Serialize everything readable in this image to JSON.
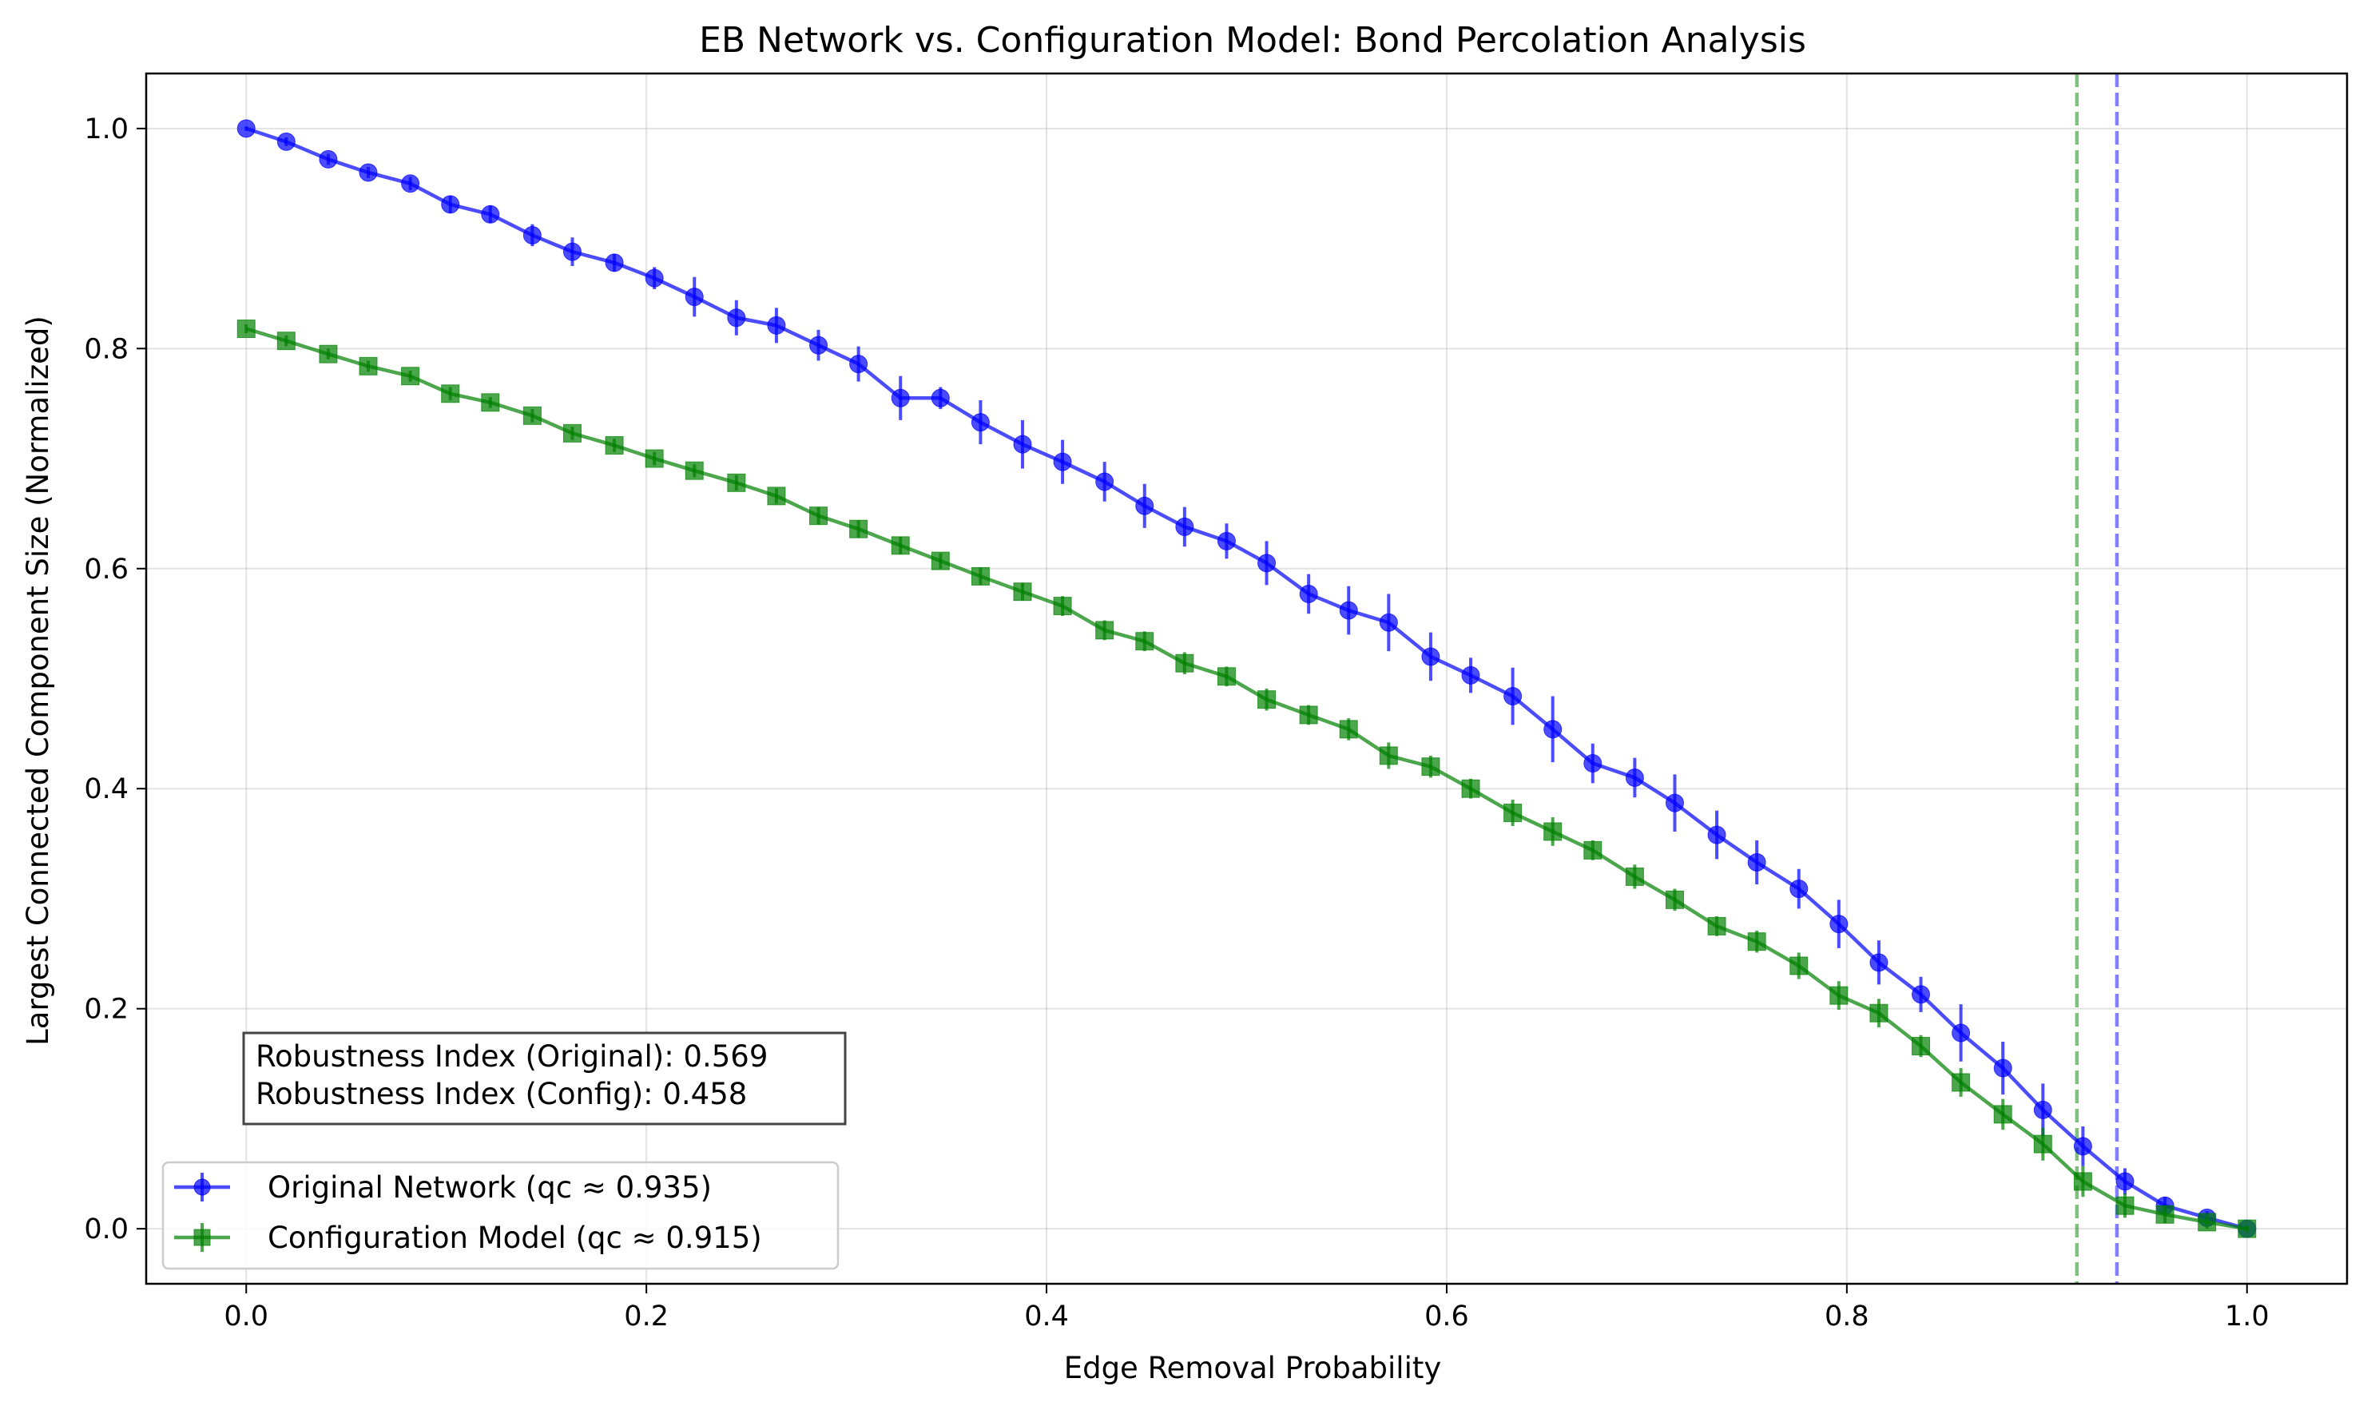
{
  "chart_data": {
    "type": "line",
    "title": "EB Network vs. Configuration Model: Bond Percolation Analysis",
    "xlabel": "Edge Removal Probability",
    "ylabel": "Largest Connected Component Size (Normalized)",
    "xlim": [
      -0.05,
      1.05
    ],
    "ylim": [
      -0.05,
      1.05
    ],
    "xticks": [
      0.0,
      0.2,
      0.4,
      0.6,
      0.8,
      1.0
    ],
    "xtick_labels": [
      "0.0",
      "0.2",
      "0.4",
      "0.6",
      "0.8",
      "1.0"
    ],
    "yticks": [
      0.0,
      0.2,
      0.4,
      0.6,
      0.8,
      1.0
    ],
    "ytick_labels": [
      "0.0",
      "0.2",
      "0.4",
      "0.6",
      "0.8",
      "1.0"
    ],
    "grid": true,
    "legend_position": "lower-left",
    "x": [
      0.0,
      0.02,
      0.041,
      0.061,
      0.082,
      0.102,
      0.122,
      0.143,
      0.163,
      0.184,
      0.204,
      0.224,
      0.245,
      0.265,
      0.286,
      0.306,
      0.327,
      0.347,
      0.367,
      0.388,
      0.408,
      0.429,
      0.449,
      0.469,
      0.49,
      0.51,
      0.531,
      0.551,
      0.571,
      0.592,
      0.612,
      0.633,
      0.653,
      0.673,
      0.694,
      0.714,
      0.735,
      0.755,
      0.776,
      0.796,
      0.816,
      0.837,
      0.857,
      0.878,
      0.898,
      0.918,
      0.939,
      0.959,
      0.98,
      1.0
    ],
    "series": [
      {
        "name": "Original Network (qc ≈ 0.935)",
        "color": "#0000ff",
        "marker": "circle",
        "values": [
          1.0,
          0.988,
          0.972,
          0.96,
          0.95,
          0.931,
          0.922,
          0.903,
          0.888,
          0.878,
          0.864,
          0.847,
          0.828,
          0.821,
          0.803,
          0.786,
          0.755,
          0.755,
          0.733,
          0.713,
          0.697,
          0.679,
          0.657,
          0.638,
          0.625,
          0.605,
          0.577,
          0.562,
          0.551,
          0.52,
          0.503,
          0.484,
          0.454,
          0.423,
          0.41,
          0.387,
          0.358,
          0.333,
          0.309,
          0.277,
          0.242,
          0.213,
          0.178,
          0.146,
          0.108,
          0.075,
          0.043,
          0.021,
          0.01,
          0.0
        ],
        "errors": [
          0.002,
          0.004,
          0.005,
          0.005,
          0.006,
          0.008,
          0.008,
          0.01,
          0.013,
          0.008,
          0.01,
          0.018,
          0.016,
          0.016,
          0.014,
          0.016,
          0.02,
          0.01,
          0.02,
          0.022,
          0.02,
          0.018,
          0.02,
          0.018,
          0.016,
          0.02,
          0.018,
          0.022,
          0.026,
          0.022,
          0.016,
          0.026,
          0.03,
          0.018,
          0.018,
          0.026,
          0.022,
          0.02,
          0.018,
          0.022,
          0.02,
          0.016,
          0.026,
          0.024,
          0.024,
          0.018,
          0.012,
          0.008,
          0.006,
          0.003
        ]
      },
      {
        "name": "Configuration Model (qc ≈ 0.915)",
        "color": "#008000",
        "marker": "square",
        "values": [
          0.818,
          0.807,
          0.795,
          0.784,
          0.775,
          0.759,
          0.751,
          0.739,
          0.723,
          0.712,
          0.7,
          0.689,
          0.678,
          0.666,
          0.648,
          0.636,
          0.621,
          0.607,
          0.593,
          0.579,
          0.566,
          0.544,
          0.534,
          0.514,
          0.502,
          0.481,
          0.467,
          0.454,
          0.43,
          0.42,
          0.4,
          0.378,
          0.361,
          0.344,
          0.32,
          0.299,
          0.275,
          0.261,
          0.239,
          0.212,
          0.196,
          0.166,
          0.133,
          0.104,
          0.077,
          0.043,
          0.021,
          0.013,
          0.006,
          0.0
        ],
        "errors": [
          0.004,
          0.005,
          0.005,
          0.005,
          0.005,
          0.006,
          0.005,
          0.006,
          0.006,
          0.006,
          0.006,
          0.006,
          0.007,
          0.007,
          0.008,
          0.008,
          0.008,
          0.007,
          0.008,
          0.008,
          0.009,
          0.009,
          0.009,
          0.01,
          0.009,
          0.01,
          0.009,
          0.01,
          0.012,
          0.01,
          0.009,
          0.012,
          0.013,
          0.009,
          0.011,
          0.01,
          0.009,
          0.01,
          0.012,
          0.013,
          0.013,
          0.01,
          0.013,
          0.014,
          0.015,
          0.014,
          0.011,
          0.008,
          0.006,
          0.003
        ]
      }
    ],
    "vlines": [
      {
        "x": 0.915,
        "color": "#008000",
        "style": "dashed"
      },
      {
        "x": 0.935,
        "color": "#0000ff",
        "style": "dashed"
      }
    ],
    "annotation": {
      "lines": [
        "Robustness Index (Original): 0.569",
        "Robustness Index (Config): 0.458"
      ],
      "placement": "lower-left, above legend"
    }
  }
}
